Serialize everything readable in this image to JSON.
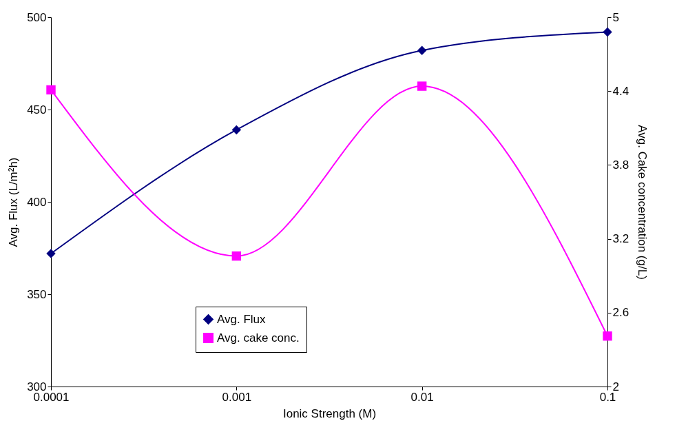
{
  "chart_data": {
    "type": "line",
    "xlabel": "Ionic Strength (M)",
    "ylabel": "Avg. Flux (L/m²h)",
    "y2label": "Avg. Cake concentration (g/L)",
    "x": [
      0.0001,
      0.001,
      0.01,
      0.1
    ],
    "log": "x",
    "xlim": [
      0.0001,
      0.1
    ],
    "xticks": [
      0.0001,
      0.001,
      0.01,
      0.1
    ],
    "ylim": [
      300,
      500
    ],
    "yticks": [
      300,
      350,
      400,
      450,
      500
    ],
    "y2lim": [
      2,
      5
    ],
    "y2ticks": [
      2,
      2.6,
      3.2,
      3.8,
      4.4,
      5
    ],
    "series": [
      {
        "name": "Avg. Flux",
        "color": "#000080",
        "marker": "diamond",
        "values": [
          372,
          439,
          482,
          492
        ]
      },
      {
        "name": "Avg. cake conc.",
        "color": "#ff00ff",
        "marker": "square",
        "axis": "y2",
        "values": [
          4.41,
          3.06,
          4.44,
          2.41
        ]
      }
    ],
    "grid": false,
    "legend": "bottom"
  }
}
